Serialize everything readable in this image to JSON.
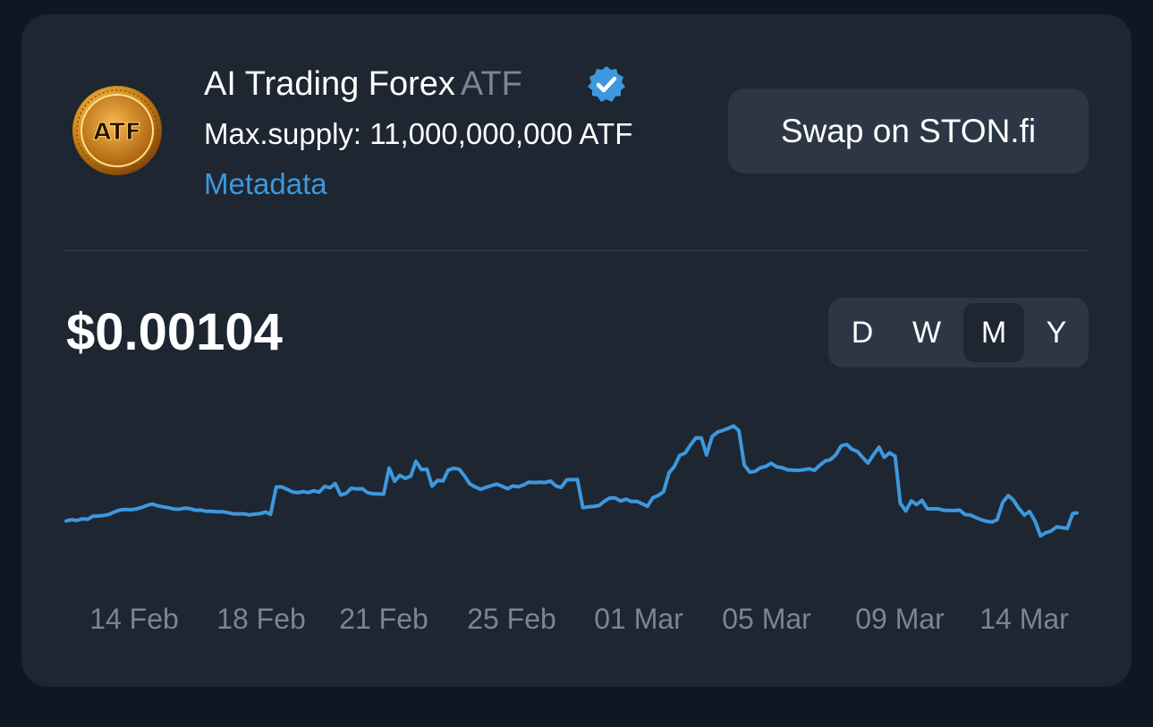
{
  "token": {
    "name": "AI Trading Forex",
    "symbol": "ATF",
    "logo_text": "ATF",
    "logo_icon": "atf-gold-coin-logo",
    "verified_icon": "verified-check-badge-icon",
    "max_supply_label": "Max.supply: 11,000,000,000 ATF",
    "metadata_label": "Metadata"
  },
  "actions": {
    "swap_label": "Swap on STON.fi"
  },
  "price": {
    "current": "$0.00104"
  },
  "range_selector": {
    "options": [
      "D",
      "W",
      "M",
      "Y"
    ],
    "selected": "M"
  },
  "colors": {
    "background": "#101722",
    "card": "#1e2632",
    "button": "#2d3645",
    "line": "#3d98dd",
    "link": "#3d98dd",
    "muted": "#7a8595"
  },
  "chart_data": {
    "type": "line",
    "x_tick_labels": [
      "14 Feb",
      "18 Feb",
      "21 Feb",
      "25 Feb",
      "01 Mar",
      "05 Mar",
      "09 Mar",
      "14 Mar"
    ],
    "x_range_days": [
      0,
      31.3
    ],
    "y_unit": "relative price",
    "y_range": [
      0,
      100
    ],
    "grid": false,
    "legend": "none",
    "series": [
      {
        "values": [
          [
            0,
            16.7
          ],
          [
            0.17,
            17.4
          ],
          [
            0.33,
            17.0
          ],
          [
            0.5,
            17.9
          ],
          [
            0.67,
            17.7
          ],
          [
            0.83,
            19.4
          ],
          [
            1.0,
            19.5
          ],
          [
            1.17,
            19.8
          ],
          [
            1.33,
            20.4
          ],
          [
            1.5,
            21.8
          ],
          [
            1.67,
            22.9
          ],
          [
            1.83,
            23.1
          ],
          [
            2.0,
            23.0
          ],
          [
            2.17,
            23.4
          ],
          [
            2.33,
            24.2
          ],
          [
            2.5,
            25.4
          ],
          [
            2.67,
            26.2
          ],
          [
            2.83,
            25.2
          ],
          [
            3.0,
            24.6
          ],
          [
            3.17,
            24.1
          ],
          [
            3.33,
            23.4
          ],
          [
            3.5,
            23.3
          ],
          [
            3.67,
            23.9
          ],
          [
            3.83,
            23.6
          ],
          [
            4.0,
            22.7
          ],
          [
            4.17,
            22.8
          ],
          [
            4.33,
            22.1
          ],
          [
            4.5,
            22.1
          ],
          [
            4.67,
            21.8
          ],
          [
            4.83,
            21.9
          ],
          [
            5.0,
            21.4
          ],
          [
            5.17,
            20.7
          ],
          [
            5.33,
            20.6
          ],
          [
            5.5,
            20.7
          ],
          [
            5.67,
            20.1
          ],
          [
            5.83,
            20.5
          ],
          [
            6.0,
            20.8
          ],
          [
            6.17,
            21.7
          ],
          [
            6.33,
            20.4
          ],
          [
            6.5,
            35.6
          ],
          [
            6.67,
            35.8
          ],
          [
            6.83,
            34.5
          ],
          [
            7.0,
            33.0
          ],
          [
            7.17,
            32.5
          ],
          [
            7.33,
            33.1
          ],
          [
            7.5,
            32.6
          ],
          [
            7.67,
            33.6
          ],
          [
            7.83,
            32.8
          ],
          [
            8.0,
            36.0
          ],
          [
            8.17,
            35.3
          ],
          [
            8.33,
            37.6
          ],
          [
            8.5,
            31.2
          ],
          [
            8.67,
            32.2
          ],
          [
            8.83,
            35.0
          ],
          [
            9.0,
            34.6
          ],
          [
            9.17,
            34.7
          ],
          [
            9.33,
            32.6
          ],
          [
            9.5,
            31.9
          ],
          [
            9.67,
            31.9
          ],
          [
            9.83,
            31.7
          ],
          [
            10.0,
            46.3
          ],
          [
            10.17,
            38.9
          ],
          [
            10.33,
            42.2
          ],
          [
            10.5,
            40.5
          ],
          [
            10.67,
            41.8
          ],
          [
            10.83,
            50.1
          ],
          [
            11.0,
            45.4
          ],
          [
            11.17,
            45.7
          ],
          [
            11.33,
            36.2
          ],
          [
            11.5,
            39.4
          ],
          [
            11.67,
            39.1
          ],
          [
            11.83,
            45.1
          ],
          [
            12.0,
            46.2
          ],
          [
            12.17,
            45.6
          ],
          [
            12.33,
            42.0
          ],
          [
            12.5,
            37.4
          ],
          [
            12.67,
            35.7
          ],
          [
            12.83,
            34.4
          ],
          [
            13.0,
            35.5
          ],
          [
            13.17,
            36.5
          ],
          [
            13.33,
            37.3
          ],
          [
            13.5,
            36.1
          ],
          [
            13.67,
            34.7
          ],
          [
            13.83,
            36.3
          ],
          [
            14.0,
            35.8
          ],
          [
            14.17,
            36.9
          ],
          [
            14.33,
            38.4
          ],
          [
            14.5,
            38.2
          ],
          [
            14.67,
            38.4
          ],
          [
            14.83,
            38.2
          ],
          [
            15.0,
            39.0
          ],
          [
            15.17,
            36.2
          ],
          [
            15.33,
            35.5
          ],
          [
            15.5,
            39.7
          ],
          [
            15.67,
            39.8
          ],
          [
            15.83,
            39.9
          ],
          [
            16.0,
            24.2
          ],
          [
            16.17,
            24.6
          ],
          [
            16.33,
            24.8
          ],
          [
            16.5,
            25.3
          ],
          [
            16.67,
            27.8
          ],
          [
            16.83,
            29.5
          ],
          [
            17.0,
            29.6
          ],
          [
            17.17,
            27.8
          ],
          [
            17.33,
            28.9
          ],
          [
            17.5,
            27.6
          ],
          [
            17.67,
            27.7
          ],
          [
            17.83,
            26.4
          ],
          [
            18.0,
            24.9
          ],
          [
            18.17,
            29.7
          ],
          [
            18.33,
            30.9
          ],
          [
            18.5,
            33.1
          ],
          [
            18.67,
            43.7
          ],
          [
            18.83,
            47.1
          ],
          [
            19.0,
            53.4
          ],
          [
            19.17,
            54.7
          ],
          [
            19.33,
            59.2
          ],
          [
            19.5,
            63.2
          ],
          [
            19.67,
            63.1
          ],
          [
            19.83,
            53.6
          ],
          [
            20.0,
            63.8
          ],
          [
            20.17,
            66.4
          ],
          [
            20.33,
            67.3
          ],
          [
            20.5,
            68.5
          ],
          [
            20.67,
            69.8
          ],
          [
            20.83,
            67.2
          ],
          [
            21.0,
            48.0
          ],
          [
            21.17,
            44.0
          ],
          [
            21.33,
            44.4
          ],
          [
            21.5,
            46.5
          ],
          [
            21.67,
            47.2
          ],
          [
            21.83,
            49.0
          ],
          [
            22.0,
            47.0
          ],
          [
            22.17,
            46.5
          ],
          [
            22.33,
            45.3
          ],
          [
            22.5,
            45.1
          ],
          [
            22.67,
            45.0
          ],
          [
            22.83,
            45.3
          ],
          [
            23.0,
            45.9
          ],
          [
            23.17,
            45.0
          ],
          [
            23.33,
            47.8
          ],
          [
            23.5,
            50.2
          ],
          [
            23.67,
            51.0
          ],
          [
            23.83,
            53.6
          ],
          [
            24.0,
            58.7
          ],
          [
            24.17,
            59.5
          ],
          [
            24.33,
            56.8
          ],
          [
            24.5,
            55.6
          ],
          [
            24.67,
            52.1
          ],
          [
            24.83,
            49.1
          ],
          [
            25.0,
            53.8
          ],
          [
            25.17,
            58.0
          ],
          [
            25.33,
            52.3
          ],
          [
            25.5,
            54.8
          ],
          [
            25.67,
            52.9
          ],
          [
            25.83,
            26.6
          ],
          [
            26.0,
            22.3
          ],
          [
            26.17,
            27.9
          ],
          [
            26.33,
            25.9
          ],
          [
            26.5,
            28.2
          ],
          [
            26.67,
            23.5
          ],
          [
            26.83,
            23.5
          ],
          [
            27.0,
            23.5
          ],
          [
            27.17,
            22.7
          ],
          [
            27.33,
            22.6
          ],
          [
            27.5,
            22.5
          ],
          [
            27.67,
            22.8
          ],
          [
            27.83,
            20.3
          ],
          [
            28.0,
            20.0
          ],
          [
            28.17,
            18.6
          ],
          [
            28.33,
            17.4
          ],
          [
            28.5,
            16.5
          ],
          [
            28.67,
            16.1
          ],
          [
            28.83,
            17.4
          ],
          [
            29.0,
            27.1
          ],
          [
            29.17,
            30.9
          ],
          [
            29.33,
            28.4
          ],
          [
            29.5,
            23.7
          ],
          [
            29.67,
            20.0
          ],
          [
            29.83,
            22.0
          ],
          [
            30.0,
            16.7
          ],
          [
            30.17,
            8.4
          ],
          [
            30.33,
            10.1
          ],
          [
            30.5,
            11.1
          ],
          [
            30.67,
            13.4
          ],
          [
            30.83,
            13.0
          ],
          [
            31.0,
            12.5
          ],
          [
            31.17,
            20.9
          ],
          [
            31.3,
            21.2
          ]
        ]
      }
    ]
  }
}
